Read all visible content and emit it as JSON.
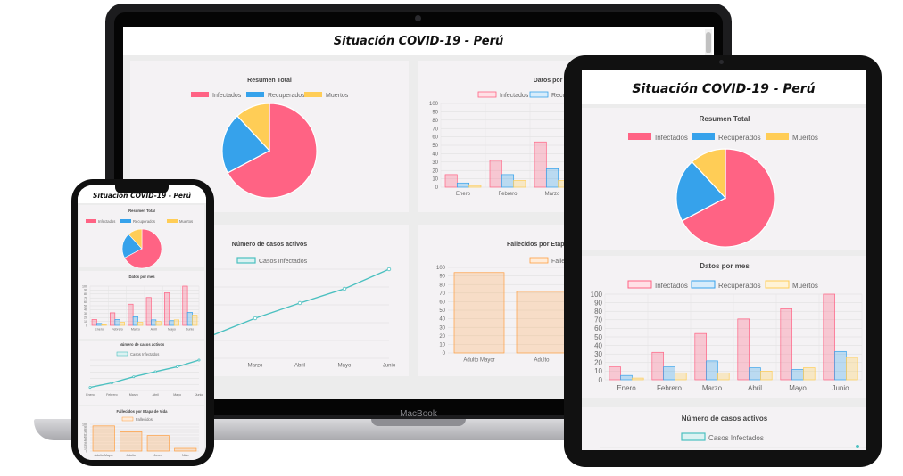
{
  "page_title": "Situación COVID-19 - Perú",
  "laptop_brand": "MacBook",
  "colors": {
    "infectados": "#ff6384",
    "recuperados": "#36a2eb",
    "muertos": "#ffcd56",
    "activos": "#4bc0c0",
    "fallecidos": "#ff9f40"
  },
  "charts": {
    "resumen": {
      "title": "Resumen Total",
      "legend": [
        "Infectados",
        "Recuperados",
        "Muertos"
      ]
    },
    "mes": {
      "title": "Datos por mes",
      "legend": [
        "Infectados",
        "Recuperados",
        "Muertos"
      ],
      "y_ticks": [
        "0",
        "10",
        "20",
        "30",
        "40",
        "50",
        "60",
        "70",
        "80",
        "90",
        "100"
      ],
      "months": [
        "Enero",
        "Febrero",
        "Marzo",
        "Abril",
        "Mayo",
        "Junio"
      ]
    },
    "activos": {
      "title": "Número de casos activos",
      "legend": "Casos Infectados",
      "months": [
        "Enero",
        "Febrero",
        "Marzo",
        "Abril",
        "Mayo",
        "Junio"
      ]
    },
    "fallecidos": {
      "title": "Fallecidos por Etapa de Vida",
      "legend": "Fallecidos",
      "categories": [
        "Adulto Mayor",
        "Adulto",
        "Joven",
        "Niño"
      ]
    }
  },
  "chart_data": [
    {
      "type": "pie",
      "title": "Resumen Total",
      "categories": [
        "Infectados",
        "Recuperados",
        "Muertos"
      ],
      "values": [
        68,
        21,
        11
      ]
    },
    {
      "type": "bar",
      "title": "Datos por mes",
      "categories": [
        "Enero",
        "Febrero",
        "Marzo",
        "Abril",
        "Mayo",
        "Junio"
      ],
      "ylim": [
        0,
        100
      ],
      "series": [
        {
          "name": "Infectados",
          "values": [
            15,
            32,
            54,
            71,
            83,
            100
          ]
        },
        {
          "name": "Recuperados",
          "values": [
            5,
            15,
            22,
            14,
            12,
            33
          ]
        },
        {
          "name": "Muertos",
          "values": [
            2,
            8,
            8,
            10,
            14,
            26
          ]
        }
      ]
    },
    {
      "type": "line",
      "title": "Número de casos activos",
      "categories": [
        "Enero",
        "Febrero",
        "Marzo",
        "Abril",
        "Mayo",
        "Junio"
      ],
      "series": [
        {
          "name": "Casos Infectados",
          "values": [
            10,
            25,
            45,
            62,
            78,
            100
          ]
        }
      ],
      "ylim": [
        0,
        100
      ]
    },
    {
      "type": "bar",
      "title": "Fallecidos por Etapa de Vida",
      "categories": [
        "Adulto Mayor",
        "Adulto",
        "Joven",
        "Niño"
      ],
      "ylim": [
        0,
        100
      ],
      "series": [
        {
          "name": "Fallecidos",
          "values": [
            94,
            72,
            58,
            10
          ]
        }
      ]
    }
  ]
}
